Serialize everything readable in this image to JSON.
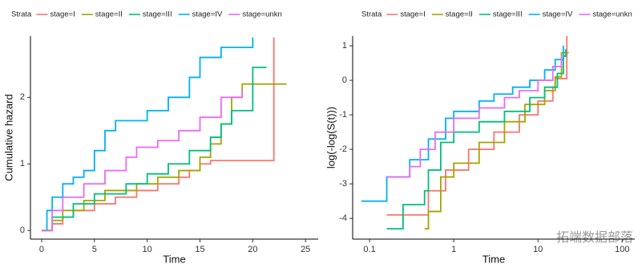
{
  "chart_data": [
    {
      "type": "line",
      "step": true,
      "legend_title": "Strata",
      "xlabel": "Time",
      "ylabel": "Cumulative hazard",
      "xlim": [
        -1.06,
        26.2
      ],
      "ylim": [
        -0.13,
        2.92
      ],
      "xticks": [
        0,
        5,
        10,
        15,
        20,
        25
      ],
      "yticks": [
        0,
        1,
        2
      ],
      "log_x": false,
      "series": [
        {
          "name": "stage=I",
          "color": "#F8766D",
          "x": [
            0,
            1,
            2,
            3,
            5,
            7,
            9,
            11,
            13,
            14,
            15,
            16,
            22,
            22
          ],
          "values": [
            0,
            0.1,
            0.2,
            0.3,
            0.4,
            0.5,
            0.6,
            0.7,
            0.8,
            0.9,
            1.0,
            1.05,
            1.05,
            2.9
          ]
        },
        {
          "name": "stage=II",
          "color": "#A3A500",
          "x": [
            0,
            1,
            2,
            4,
            6,
            9,
            11,
            13,
            15,
            16,
            17,
            18,
            19,
            23.2
          ],
          "values": [
            0,
            0.15,
            0.3,
            0.45,
            0.6,
            0.7,
            0.8,
            0.9,
            1.1,
            1.3,
            1.6,
            2.0,
            2.2,
            2.2
          ]
        },
        {
          "name": "stage=III",
          "color": "#00BF7D",
          "x": [
            0,
            1,
            3,
            5,
            8,
            10,
            12,
            14,
            16,
            17,
            18,
            20,
            20,
            21.3
          ],
          "values": [
            0,
            0.2,
            0.4,
            0.55,
            0.7,
            0.85,
            1.0,
            1.2,
            1.4,
            1.6,
            1.8,
            2.0,
            2.45,
            2.45
          ]
        },
        {
          "name": "stage=IV",
          "color": "#00B0F6",
          "x": [
            0,
            0.5,
            1,
            2,
            3,
            4,
            5,
            6,
            7,
            10,
            12,
            14,
            15,
            17,
            20
          ],
          "values": [
            0,
            0.3,
            0.5,
            0.7,
            0.8,
            0.9,
            1.2,
            1.5,
            1.65,
            1.8,
            2.0,
            2.3,
            2.6,
            2.75,
            2.9
          ]
        },
        {
          "name": "stage=unkn",
          "color": "#E76BF3",
          "x": [
            0,
            1,
            2,
            4,
            6,
            8,
            9,
            11,
            13,
            15,
            17,
            19
          ],
          "values": [
            0,
            0.3,
            0.5,
            0.7,
            0.9,
            1.1,
            1.25,
            1.35,
            1.5,
            1.7,
            2.0,
            2.1
          ]
        }
      ]
    },
    {
      "type": "line",
      "step": true,
      "legend_title": "Strata",
      "xlabel": "Time",
      "ylabel": "log(-log(S(t)))",
      "xlim": [
        0.063,
        141
      ],
      "ylim": [
        -4.6,
        1.28
      ],
      "xticks": [
        0.1,
        1,
        10,
        100
      ],
      "yticks": [
        -4,
        -3,
        -2,
        -1,
        0,
        1
      ],
      "log_x": true,
      "series": [
        {
          "name": "stage=I",
          "color": "#F8766D",
          "x": [
            0.16,
            0.4,
            0.5,
            0.8,
            1.5,
            3,
            6,
            10,
            15,
            16,
            22,
            22
          ],
          "values": [
            -3.9,
            -3.9,
            -3.2,
            -2.6,
            -2.0,
            -1.5,
            -1.0,
            -0.6,
            -0.2,
            0.05,
            0.05,
            1.28
          ]
        },
        {
          "name": "stage=II",
          "color": "#A3A500",
          "x": [
            0.45,
            0.5,
            0.7,
            1,
            2,
            4,
            7,
            12,
            16,
            19,
            23.2
          ],
          "values": [
            -4.3,
            -3.8,
            -2.8,
            -2.4,
            -1.8,
            -1.2,
            -0.7,
            -0.3,
            0.1,
            0.8,
            0.8
          ]
        },
        {
          "name": "stage=III",
          "color": "#00BF7D",
          "x": [
            0.16,
            0.25,
            0.45,
            0.5,
            0.7,
            1,
            2,
            4,
            8,
            12,
            17,
            20,
            21.3
          ],
          "values": [
            -4.3,
            -3.6,
            -3.2,
            -2.6,
            -1.8,
            -1.5,
            -1.2,
            -0.9,
            -0.5,
            -0.2,
            0.2,
            0.7,
            0.9
          ]
        },
        {
          "name": "stage=IV",
          "color": "#00B0F6",
          "x": [
            0.08,
            0.15,
            0.16,
            0.3,
            0.5,
            0.8,
            1,
            2,
            3,
            5,
            8,
            12,
            16,
            20
          ],
          "values": [
            -3.5,
            -3.5,
            -2.8,
            -2.3,
            -1.7,
            -1.1,
            -0.9,
            -0.6,
            -0.4,
            -0.2,
            0,
            0.3,
            0.6,
            1.0
          ]
        },
        {
          "name": "stage=unkn",
          "color": "#E76BF3",
          "x": [
            0.16,
            0.3,
            0.4,
            0.6,
            1,
            2,
            4,
            6,
            10,
            15,
            19
          ],
          "values": [
            -2.8,
            -2.5,
            -2.0,
            -1.5,
            -1.1,
            -0.8,
            -0.5,
            -0.3,
            0,
            0.4,
            0.7
          ]
        }
      ]
    }
  ],
  "watermark": "拓端数据部落"
}
